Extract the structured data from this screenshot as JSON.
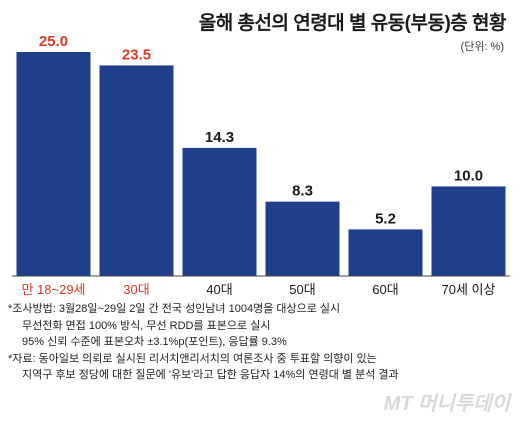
{
  "title": "올해 총선의 연령대 별 유동(부동)층 현황",
  "unit": "(단위: %)",
  "colors": {
    "bar": "#1f3f8a",
    "highlight_label": "#d93a24",
    "normal_label": "#1a1a1a",
    "baseline": "#444444"
  },
  "chart_data": {
    "type": "bar",
    "categories": [
      "만 18~29세",
      "30대",
      "40대",
      "50대",
      "60대",
      "70세 이상"
    ],
    "values": [
      25.0,
      23.5,
      14.3,
      8.3,
      5.2,
      10.0
    ],
    "value_labels": [
      "25.0",
      "23.5",
      "14.3",
      "8.3",
      "5.2",
      "10.0"
    ],
    "highlighted": [
      true,
      true,
      false,
      false,
      false,
      false
    ],
    "ylim": [
      0,
      25
    ],
    "grid": false,
    "legend": "none"
  },
  "notes": {
    "survey_line1": "*조사방법: 3월28일~29일 2일 간 전국 성인남녀 1004명을 대상으로 실시",
    "survey_line2": "무선전화 면접 100% 방식, 무선 RDD를 표본으로 실시",
    "survey_line3": "95% 신뢰 수준에 표본오차 ±3.1%p(포인트), 응답률 9.3%",
    "source_line1": "*자료: 동아일보 의뢰로 실시된 리서치앤리서치의 여론조사 중 투표할 의향이 있는",
    "source_line2": "지역구 후보 정당에 대한 질문에 '유보'라고 답한 응답자 14%의 연령대 별 분석 결과"
  },
  "watermark": "MT 머니투데이"
}
